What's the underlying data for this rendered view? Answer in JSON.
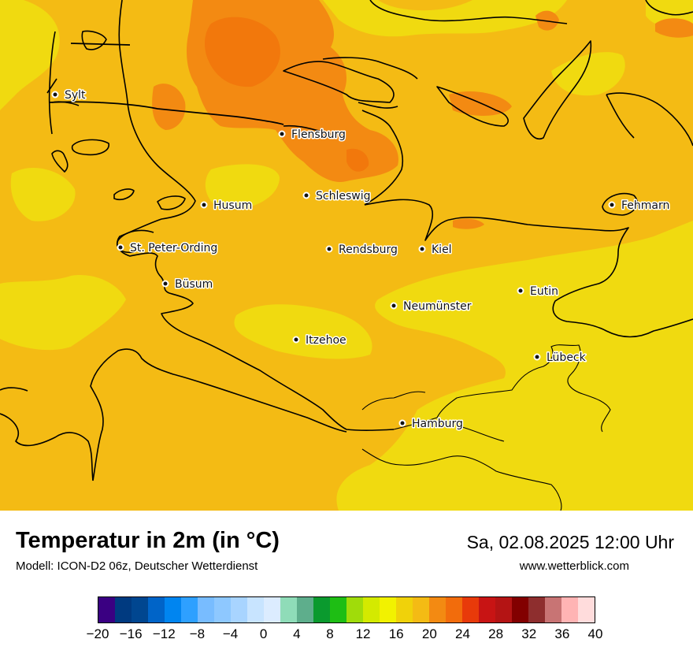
{
  "title": "Temperatur in 2m (in °C)",
  "model": "Modell: ICON-D2 06z, Deutscher Wetterdienst",
  "datetime": "Sa, 02.08.2025 12:00 Uhr",
  "website": "www.wetterblick.com",
  "cities": [
    {
      "name": "Sylt"
    },
    {
      "name": "Flensburg"
    },
    {
      "name": "Schleswig"
    },
    {
      "name": "Husum"
    },
    {
      "name": "Fehmarn"
    },
    {
      "name": "St. Peter-Ording"
    },
    {
      "name": "Rendsburg"
    },
    {
      "name": "Kiel"
    },
    {
      "name": "Büsum"
    },
    {
      "name": "Eutin"
    },
    {
      "name": "Neumünster"
    },
    {
      "name": "Itzehoe"
    },
    {
      "name": "Lübeck"
    },
    {
      "name": "Hamburg"
    }
  ],
  "colors": {
    "temp_16_18": "#f0da10",
    "temp_18_20": "#f4bb14",
    "temp_20_22": "#f38a12",
    "temp_22_24": "#f2780c"
  },
  "legend": {
    "colors": [
      "#3a0082",
      "#003a80",
      "#004690",
      "#0064c8",
      "#0085f0",
      "#2ea0ff",
      "#78bcff",
      "#8ec8ff",
      "#a8d4ff",
      "#c8e4ff",
      "#dcecff",
      "#8fdcb8",
      "#5eae8c",
      "#0a9a2e",
      "#1ebe14",
      "#a0dc0a",
      "#d4ea00",
      "#f2f200",
      "#f0d20a",
      "#f4bb14",
      "#f38a12",
      "#f26c0c",
      "#e83a0a",
      "#c81414",
      "#b41414",
      "#820000",
      "#8e2e2e",
      "#c87474",
      "#ffb4b4",
      "#ffdcdc"
    ],
    "tick_labels": [
      "−20",
      "−16",
      "−12",
      "−8",
      "−4",
      "0",
      "4",
      "8",
      "12",
      "16",
      "20",
      "24",
      "28",
      "32",
      "36",
      "40"
    ]
  }
}
